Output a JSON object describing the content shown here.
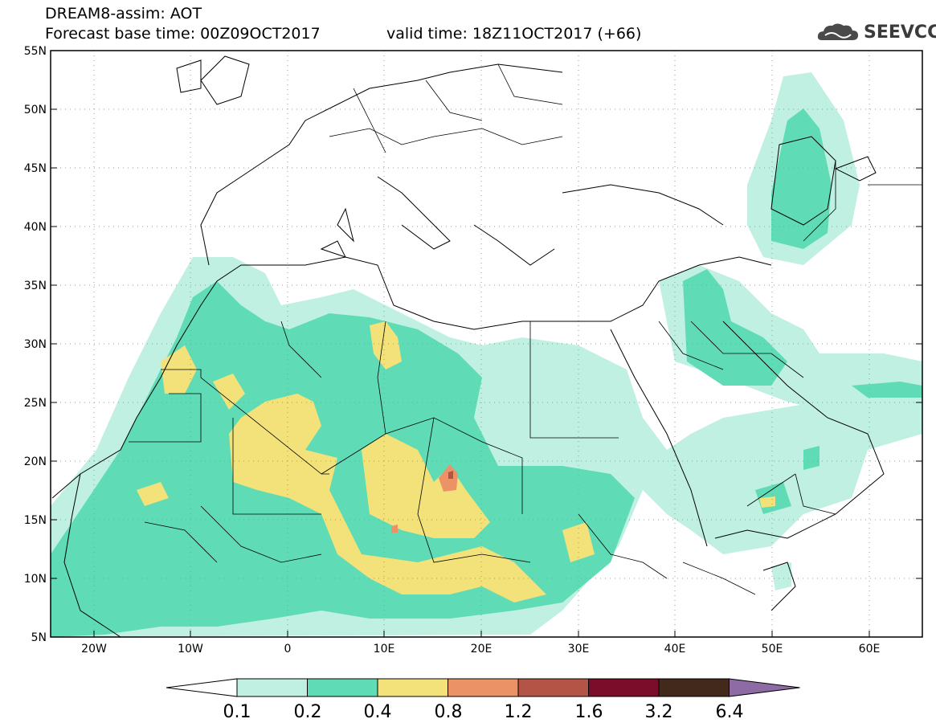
{
  "header": {
    "title": "DREAM8-assim: AOT",
    "base_time": "Forecast base time: 00Z09OCT2017",
    "valid_time": "valid time: 18Z11OCT2017 (+66)"
  },
  "logo": {
    "text": "SEEVCCC",
    "icon": "cloud-logo-icon"
  },
  "map": {
    "lat_labels": [
      "55N",
      "50N",
      "45N",
      "40N",
      "35N",
      "30N",
      "25N",
      "20N",
      "15N",
      "10N",
      "5N"
    ],
    "lon_labels": [
      "20W",
      "10W",
      "0",
      "10E",
      "20E",
      "30E",
      "40E",
      "50E",
      "60E"
    ],
    "lon_range": [
      -25,
      65
    ],
    "lat_range": [
      5,
      55
    ],
    "grid": "dotted",
    "basemap": "country-borders"
  },
  "colorbar": {
    "labels": [
      "0.1",
      "0.2",
      "0.4",
      "0.8",
      "1.2",
      "1.6",
      "3.2",
      "6.4"
    ],
    "colors": [
      "#ffffff",
      "#bff0e2",
      "#5fdcb6",
      "#f3e27a",
      "#eb9266",
      "#b35446",
      "#7c0d2a",
      "#43291c",
      "#8e6ba5"
    ]
  }
}
